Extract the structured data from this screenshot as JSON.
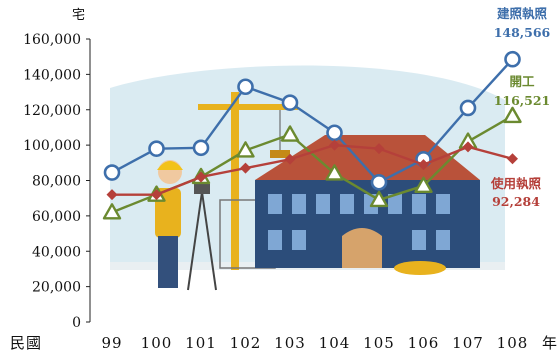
{
  "chart_data": {
    "type": "line",
    "title": "",
    "ylabel": "宅",
    "xlabel_prefix": "民國",
    "xlabel_suffix": "年",
    "categories": [
      "99",
      "100",
      "101",
      "102",
      "103",
      "104",
      "105",
      "106",
      "107",
      "108"
    ],
    "ylim": [
      0,
      160000
    ],
    "yticks": [
      {
        "value": 0,
        "label": "0"
      },
      {
        "value": 20000,
        "label": "20,000"
      },
      {
        "value": 40000,
        "label": "40,000"
      },
      {
        "value": 60000,
        "label": "60,000"
      },
      {
        "value": 80000,
        "label": "80,000"
      },
      {
        "value": 100000,
        "label": "100,000"
      },
      {
        "value": 120000,
        "label": "120,000"
      },
      {
        "value": 140000,
        "label": "140,000"
      },
      {
        "value": 160000,
        "label": "160,000"
      }
    ],
    "grid": false,
    "series": [
      {
        "name": "建照執照",
        "color": "#3e6fab",
        "marker": "circle",
        "end_label": "148,566",
        "values": [
          84500,
          98000,
          98500,
          133000,
          124000,
          107000,
          79000,
          92000,
          121000,
          148566
        ]
      },
      {
        "name": "開工",
        "color": "#6b8a30",
        "marker": "triangle",
        "end_label": "116,521",
        "values": [
          62000,
          72000,
          82000,
          97000,
          106000,
          84000,
          69000,
          77000,
          102000,
          116521
        ]
      },
      {
        "name": "使用執照",
        "color": "#b5403a",
        "marker": "diamond",
        "end_label": "92,284",
        "values": [
          72000,
          72000,
          82000,
          87000,
          92000,
          100000,
          98000,
          89000,
          99000,
          92284
        ]
      }
    ]
  },
  "illustration": {
    "icon": "construction-site-illustration",
    "colors": {
      "sky": "#cfe5ee",
      "building": "#2c4d7a",
      "roof": "#c25a3c",
      "crane": "#e8b21e",
      "worker_vest": "#e8b21e"
    }
  }
}
